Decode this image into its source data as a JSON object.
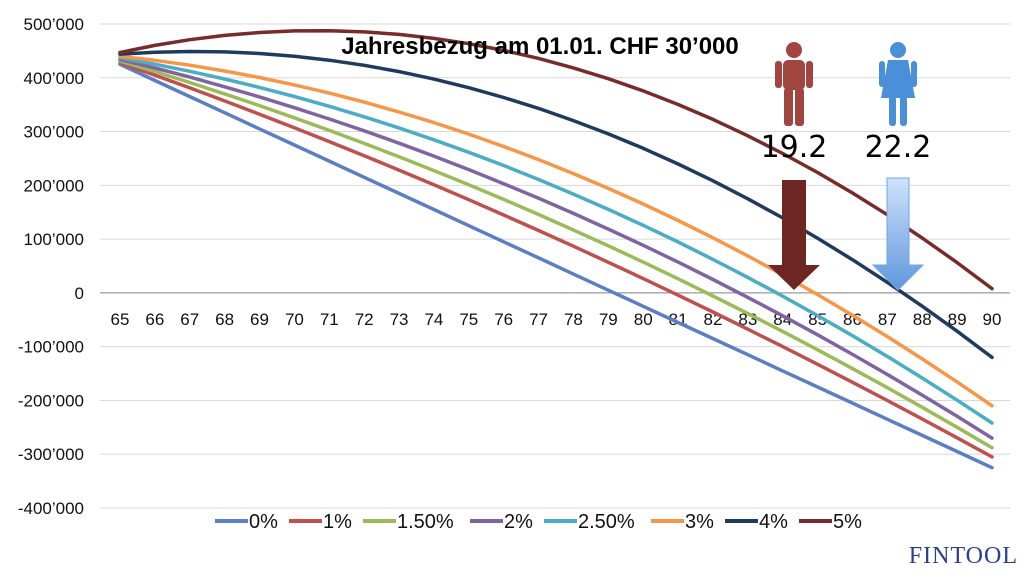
{
  "chart_data": {
    "type": "line",
    "title": "Jahresbezug am 01.01. CHF 30’000",
    "x": [
      65,
      66,
      67,
      68,
      69,
      70,
      71,
      72,
      73,
      74,
      75,
      76,
      77,
      78,
      79,
      80,
      81,
      82,
      83,
      84,
      85,
      86,
      87,
      88,
      89,
      90
    ],
    "x_tick_labels": [
      "65",
      "66",
      "67",
      "68",
      "69",
      "70",
      "71",
      "72",
      "73",
      "74",
      "75",
      "76",
      "77",
      "78",
      "79",
      "80",
      "81",
      "82",
      "83",
      "84",
      "85",
      "86",
      "87",
      "88",
      "89",
      "90"
    ],
    "ylim": [
      -400000,
      500000
    ],
    "y_ticks": [
      500000,
      400000,
      300000,
      200000,
      100000,
      0,
      -100000,
      -200000,
      -300000,
      -400000
    ],
    "y_tick_labels": [
      "500’000",
      "400’000",
      "300’000",
      "200’000",
      "100’000",
      "0",
      "-100’000",
      "-200’000",
      "-300’000",
      "-400’000"
    ],
    "grid": true,
    "legend_position": "bottom",
    "series": [
      {
        "name": "0%",
        "color": "#5b7fc4",
        "start": 425000,
        "end": -325000,
        "curve": 0
      },
      {
        "name": "1%",
        "color": "#c0504d",
        "start": 428000,
        "end": -305000,
        "curve": 40000
      },
      {
        "name": "1.50%",
        "color": "#9bbb59",
        "start": 431000,
        "end": -288000,
        "curve": 60000
      },
      {
        "name": "2%",
        "color": "#8064a2",
        "start": 434000,
        "end": -270000,
        "curve": 80000
      },
      {
        "name": "2.50%",
        "color": "#4bacc6",
        "start": 437000,
        "end": -242000,
        "curve": 100000
      },
      {
        "name": "3%",
        "color": "#f79646",
        "start": 440000,
        "end": -210000,
        "curve": 120000
      },
      {
        "name": "4%",
        "color": "#1f3a5f",
        "start": 444000,
        "end": -120000,
        "curve": 170000
      },
      {
        "name": "5%",
        "color": "#772c2a",
        "start": 447000,
        "end": 8000,
        "curve": 200000
      }
    ],
    "annotations": [
      {
        "label": "19.2",
        "figure": "male-figure-icon",
        "color": "#a0453f",
        "arrow_color": "#6e2622",
        "x": 84.2
      },
      {
        "label": "22.2",
        "figure": "female-figure-icon",
        "color": "#4a90d9",
        "arrow_color": "#6fa6e6",
        "x": 87.2
      }
    ]
  },
  "branding": {
    "logo_text": "FINTOOL"
  }
}
